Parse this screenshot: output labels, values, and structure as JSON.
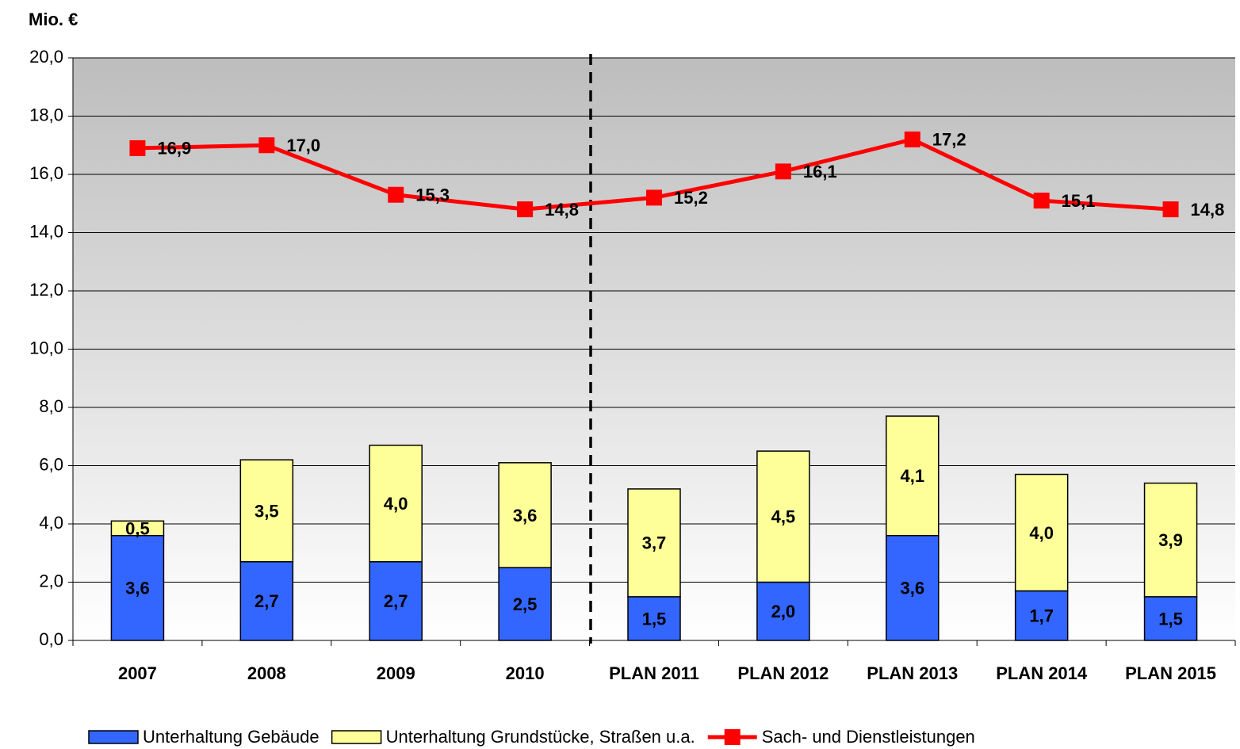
{
  "chart_data": {
    "type": "bar",
    "stacked": true,
    "y_label": "Mio. €",
    "categories": [
      "2007",
      "2008",
      "2009",
      "2010",
      "PLAN 2011",
      "PLAN 2012",
      "PLAN 2013",
      "PLAN 2014",
      "PLAN 2015"
    ],
    "series": [
      {
        "name": "Unterhaltung Gebäude",
        "type": "bar",
        "color": "#3366ff",
        "values": [
          3.6,
          2.7,
          2.7,
          2.5,
          1.5,
          2.0,
          3.6,
          1.7,
          1.5
        ],
        "value_labels": [
          "3,6",
          "2,7",
          "2,7",
          "2,5",
          "1,5",
          "2,0",
          "3,6",
          "1,7",
          "1,5"
        ]
      },
      {
        "name": "Unterhaltung Grundstücke, Straßen u.a.",
        "type": "bar",
        "color": "#ffff99",
        "values": [
          0.5,
          3.5,
          4.0,
          3.6,
          3.7,
          4.5,
          4.1,
          4.0,
          3.9
        ],
        "value_labels": [
          "0,5",
          "3,5",
          "4,0",
          "3,6",
          "3,7",
          "4,5",
          "4,1",
          "4,0",
          "3,9"
        ]
      },
      {
        "name": "Sach- und Dienstleistungen",
        "type": "line",
        "color": "#ff0000",
        "values": [
          16.9,
          17.0,
          15.3,
          14.8,
          15.2,
          16.1,
          17.2,
          15.1,
          14.8
        ],
        "value_labels": [
          "16,9",
          "17,0",
          "15,3",
          "14,8",
          "15,2",
          "16,1",
          "17,2",
          "15,1",
          "14,8"
        ]
      }
    ],
    "ylim": [
      0,
      20
    ],
    "yticks": [
      {
        "value": 0,
        "label": "0,0"
      },
      {
        "value": 2,
        "label": "2,0"
      },
      {
        "value": 4,
        "label": "4,0"
      },
      {
        "value": 6,
        "label": "6,0"
      },
      {
        "value": 8,
        "label": "8,0"
      },
      {
        "value": 10,
        "label": "10,0"
      },
      {
        "value": 12,
        "label": "12,0"
      },
      {
        "value": 14,
        "label": "14,0"
      },
      {
        "value": 16,
        "label": "16,0"
      },
      {
        "value": 18,
        "label": "18,0"
      },
      {
        "value": 20,
        "label": "20,0"
      }
    ],
    "grid": true,
    "legend": "bottom"
  }
}
